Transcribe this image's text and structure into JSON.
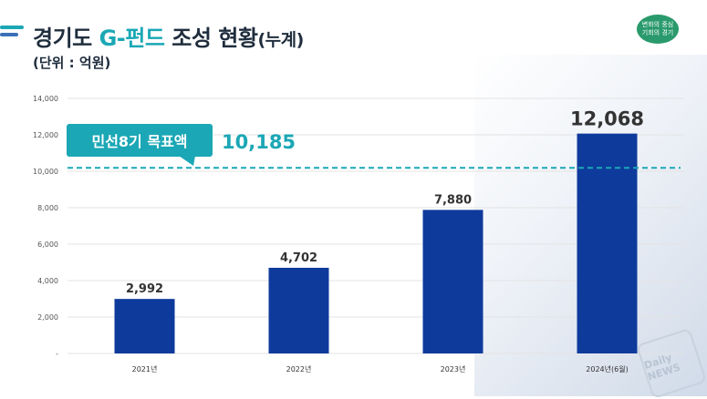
{
  "header": {
    "title_part1": "경기도 ",
    "title_accent": "G-펀드",
    "title_part2": " 조성 현황",
    "title_suffix": "(누계)",
    "unit": "(단위 : 억원)"
  },
  "logo": {
    "line1": "변화의 중심",
    "line2": "기회의 경기"
  },
  "target": {
    "label": "민선8기 목표액",
    "value_text": "10,185"
  },
  "watermark": "Daily NEWS",
  "colors": {
    "bar": "#0e3a9c",
    "target_line": "#1ba7b5",
    "callout": "#1ba7b5",
    "accent": "#1ba7b5"
  },
  "chart_data": {
    "type": "bar",
    "categories": [
      "2021년",
      "2022년",
      "2023년",
      "2024년(6월)"
    ],
    "values": [
      2992,
      4702,
      7880,
      12068
    ],
    "value_labels": [
      "2,992",
      "4,702",
      "7,880",
      "12,068"
    ],
    "ylim": [
      0,
      14000
    ],
    "yticks": [
      0,
      2000,
      4000,
      6000,
      8000,
      10000,
      12000,
      14000
    ],
    "ytick_labels": [
      "-",
      "2,000",
      "4,000",
      "6,000",
      "8,000",
      "10,000",
      "12,000",
      "14,000"
    ],
    "target_value": 10185,
    "grid": true,
    "legend": "none"
  }
}
